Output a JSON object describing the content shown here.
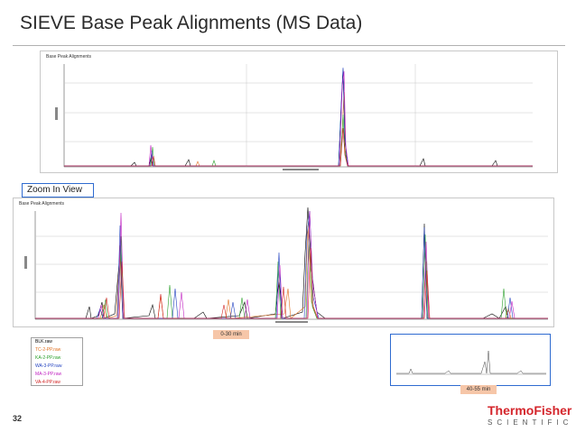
{
  "slide": {
    "title": "SIEVE Base Peak Alignments (MS Data)",
    "page_number": "32"
  },
  "top_panel": {
    "title": "Base Peak Alignments"
  },
  "zoom_label": "Zoom In View",
  "bottom_panel": {
    "title": "Base Peak Alignments"
  },
  "range_note_left": "0-30 min",
  "range_note_right": "40-55 min",
  "legend": {
    "items": [
      {
        "label": "BLK.raw",
        "color": "#000000"
      },
      {
        "label": "TC-2-PP.raw",
        "color": "#e07020"
      },
      {
        "label": "KA-2-PP.raw",
        "color": "#2aa02a"
      },
      {
        "label": "WA-3-PP.raw",
        "color": "#1f3fbf"
      },
      {
        "label": "MA-3-PP.raw",
        "color": "#c020c0"
      },
      {
        "label": "VA-4-PP.raw",
        "color": "#d02020"
      }
    ]
  },
  "brand": {
    "line1": "ThermoFisher",
    "line2": "SCIENTIFIC",
    "color": "#d4252b"
  }
}
